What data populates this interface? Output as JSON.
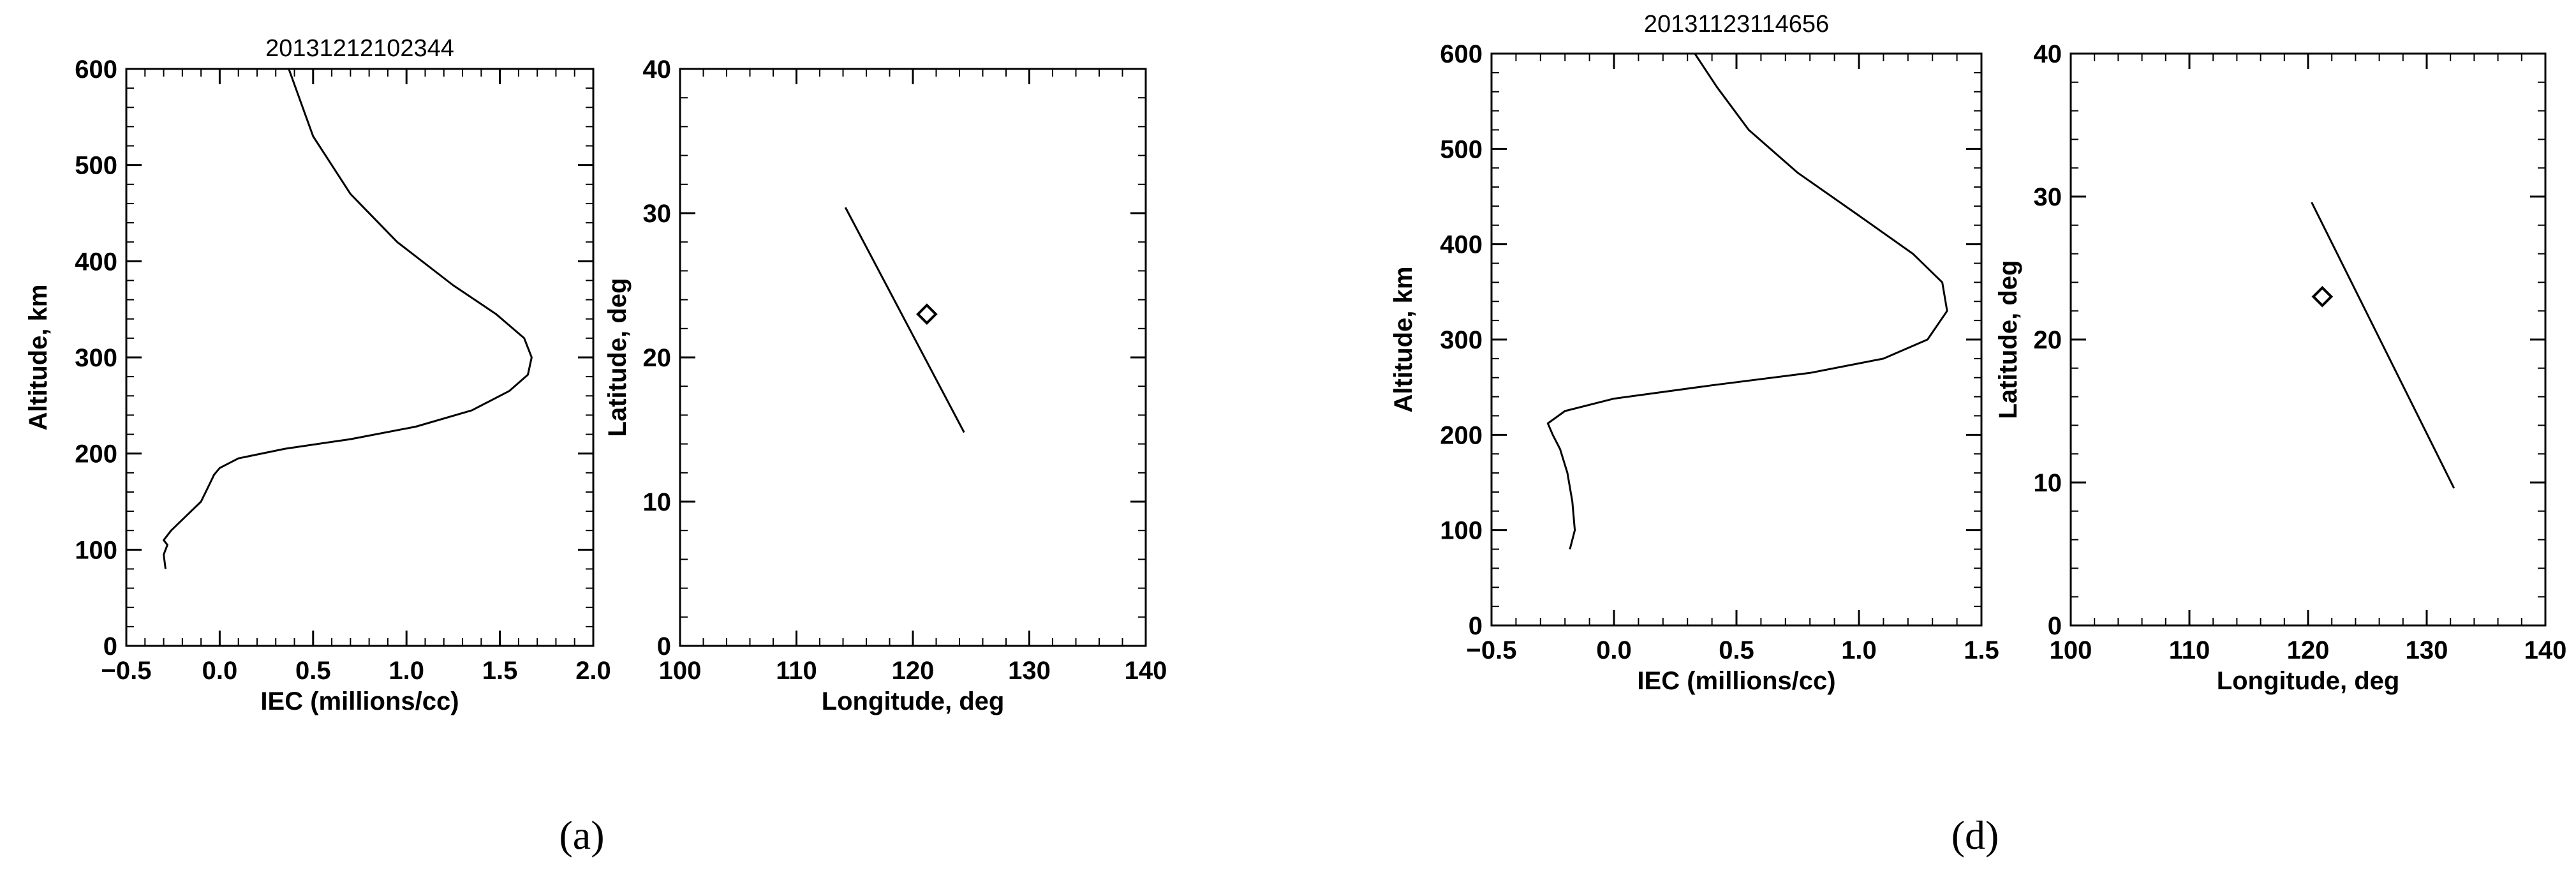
{
  "panels": [
    {
      "letter_display": "(a)",
      "letter": "a",
      "title": "20131212102344"
    },
    {
      "letter_display": "(d)",
      "letter": "d",
      "title": "20131123114656"
    }
  ],
  "chart_data": [
    {
      "type": "line",
      "panel": "a",
      "title": "20131212102344",
      "xlabel": "IEC (millions/cc)",
      "ylabel": "Altitude, km",
      "xlim": [
        -0.5,
        2.0
      ],
      "ylim": [
        0,
        600
      ],
      "xticks": [
        "−0.5",
        "0.0",
        "0.5",
        "1.0",
        "1.5",
        "2.0"
      ],
      "xtick_values": [
        -0.5,
        0.0,
        0.5,
        1.0,
        1.5,
        2.0
      ],
      "yticks": [
        "0",
        "100",
        "200",
        "300",
        "400",
        "500",
        "600"
      ],
      "ytick_values": [
        0,
        100,
        200,
        300,
        400,
        500,
        600
      ],
      "series": [
        {
          "x": [
            -0.29,
            -0.3,
            -0.28,
            -0.3,
            -0.26,
            -0.18,
            -0.1,
            -0.05,
            -0.03,
            0.0,
            0.1,
            0.35,
            0.7,
            1.05,
            1.35,
            1.55,
            1.65,
            1.67,
            1.63,
            1.48,
            1.25,
            0.95,
            0.7,
            0.5,
            0.37
          ],
          "y": [
            80,
            95,
            105,
            110,
            120,
            135,
            150,
            170,
            178,
            185,
            195,
            205,
            215,
            228,
            245,
            265,
            282,
            300,
            320,
            345,
            375,
            420,
            470,
            530,
            600
          ]
        }
      ]
    },
    {
      "type": "scatter",
      "panel": "a",
      "xlabel": "Longitude, deg",
      "ylabel": "Latitude, deg",
      "xlim": [
        100,
        140
      ],
      "ylim": [
        0,
        40
      ],
      "xticks": [
        "100",
        "110",
        "120",
        "130",
        "140"
      ],
      "xtick_values": [
        100,
        110,
        120,
        130,
        140
      ],
      "yticks": [
        "0",
        "10",
        "20",
        "30",
        "40"
      ],
      "ytick_values": [
        0,
        10,
        20,
        30,
        40
      ],
      "series": [
        {
          "type": "line",
          "x": [
            114.2,
            124.4
          ],
          "y": [
            30.4,
            14.8
          ]
        },
        {
          "type": "scatter",
          "marker": "diamond",
          "x": [
            121.2
          ],
          "y": [
            23.0
          ]
        }
      ]
    },
    {
      "type": "line",
      "panel": "d",
      "title": "20131123114656",
      "xlabel": "IEC (millions/cc)",
      "ylabel": "Altitude, km",
      "xlim": [
        -0.5,
        1.5
      ],
      "ylim": [
        0,
        600
      ],
      "xticks": [
        "−0.5",
        "0.0",
        "0.5",
        "1.0",
        "1.5"
      ],
      "xtick_values": [
        -0.5,
        0.0,
        0.5,
        1.0,
        1.5
      ],
      "yticks": [
        "0",
        "100",
        "200",
        "300",
        "400",
        "500",
        "600"
      ],
      "ytick_values": [
        0,
        100,
        200,
        300,
        400,
        500,
        600
      ],
      "series": [
        {
          "x": [
            -0.18,
            -0.16,
            -0.17,
            -0.19,
            -0.22,
            -0.25,
            -0.27,
            -0.2,
            0.0,
            0.4,
            0.8,
            1.1,
            1.28,
            1.36,
            1.34,
            1.22,
            1.0,
            0.75,
            0.55,
            0.42,
            0.33
          ],
          "y": [
            80,
            100,
            130,
            160,
            185,
            200,
            212,
            225,
            238,
            252,
            265,
            280,
            300,
            330,
            360,
            390,
            430,
            475,
            520,
            565,
            600
          ]
        }
      ]
    },
    {
      "type": "scatter",
      "panel": "d",
      "xlabel": "Longitude, deg",
      "ylabel": "Latitude, deg",
      "xlim": [
        100,
        140
      ],
      "ylim": [
        0,
        40
      ],
      "xticks": [
        "100",
        "110",
        "120",
        "130",
        "140"
      ],
      "xtick_values": [
        100,
        110,
        120,
        130,
        140
      ],
      "yticks": [
        "0",
        "10",
        "20",
        "30",
        "40"
      ],
      "ytick_values": [
        0,
        10,
        20,
        30,
        40
      ],
      "series": [
        {
          "type": "line",
          "x": [
            120.3,
            132.3
          ],
          "y": [
            29.6,
            9.6
          ]
        },
        {
          "type": "scatter",
          "marker": "diamond",
          "x": [
            121.2
          ],
          "y": [
            23.0
          ]
        }
      ]
    }
  ]
}
